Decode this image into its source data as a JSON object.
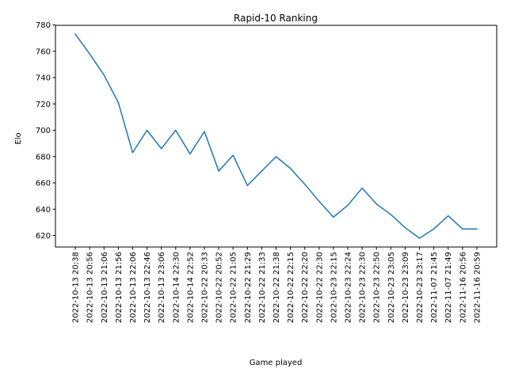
{
  "chart_data": {
    "type": "line",
    "title": "Rapid-10 Ranking",
    "xlabel": "Game played",
    "ylabel": "Elo",
    "categories": [
      "2022-10-13 20:38",
      "2022-10-13 20:56",
      "2022-10-13 21:06",
      "2022-10-13 21:56",
      "2022-10-13 22:06",
      "2022-10-13 22:46",
      "2022-10-13 23:06",
      "2022-10-14 22:30",
      "2022-10-14 22:52",
      "2022-10-22 20:33",
      "2022-10-22 20:52",
      "2022-10-22 21:05",
      "2022-10-22 21:29",
      "2022-10-22 21:33",
      "2022-10-22 21:38",
      "2022-10-22 22:15",
      "2022-10-22 22:20",
      "2022-10-22 22:30",
      "2022-10-23 22:15",
      "2022-10-23 22:24",
      "2022-10-23 22:30",
      "2022-10-23 22:50",
      "2022-10-23 23:05",
      "2022-10-23 23:09",
      "2022-10-23 23:17",
      "2022-11-07 21:45",
      "2022-11-07 21:49",
      "2022-11-16 20:56",
      "2022-11-16 20:59"
    ],
    "series": [
      {
        "values": [
          773,
          758,
          742,
          721,
          683,
          700,
          686,
          700,
          682,
          699,
          669,
          681,
          658,
          669,
          680,
          671,
          659,
          646,
          634,
          643,
          656,
          644,
          636,
          626,
          618,
          625,
          635,
          625,
          625
        ],
        "color": "#1f77b4"
      }
    ],
    "ylim": [
      611.3,
      779.7
    ],
    "yticks": [
      620,
      640,
      660,
      680,
      700,
      720,
      740,
      760,
      780
    ],
    "grid": false,
    "legend": "none"
  }
}
